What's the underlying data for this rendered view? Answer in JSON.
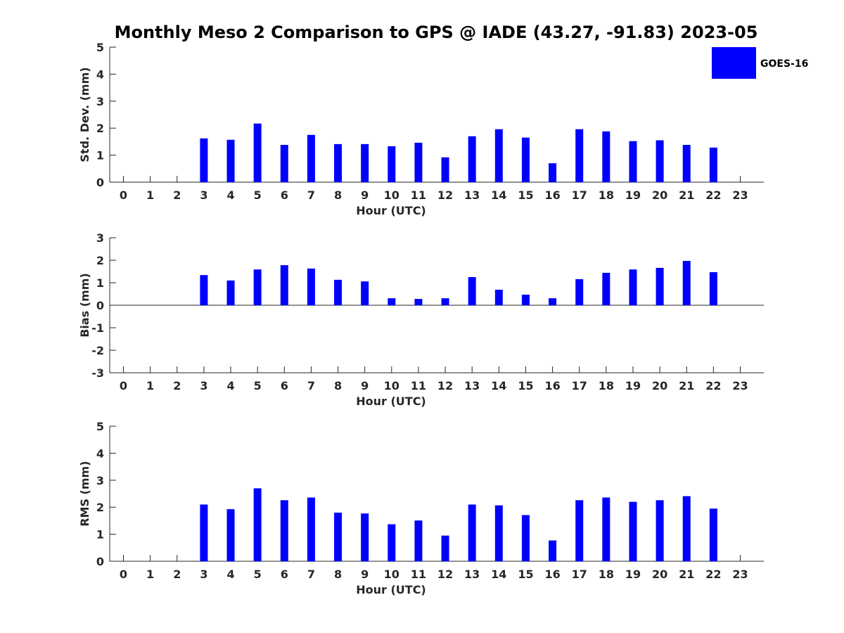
{
  "chart_data": {
    "title": "Monthly Meso 2 Comparison to GPS @ IADE (43.27, -91.83) 2023-05",
    "legend": {
      "label": "GOES-16",
      "color": "#0000ff",
      "placement": "top-right"
    },
    "panels": [
      {
        "type": "bar",
        "id": "std",
        "ylabel": "Std. Dev. (mm)",
        "xlabel": "Hour (UTC)",
        "ylim": [
          0,
          5
        ],
        "yticks": [
          0,
          1,
          2,
          3,
          4,
          5
        ],
        "categories": [
          "0",
          "1",
          "2",
          "3",
          "4",
          "5",
          "6",
          "7",
          "8",
          "9",
          "10",
          "11",
          "12",
          "13",
          "14",
          "15",
          "16",
          "17",
          "18",
          "19",
          "20",
          "21",
          "22",
          "23"
        ],
        "values": [
          null,
          null,
          null,
          1.62,
          1.57,
          2.17,
          1.38,
          1.75,
          1.41,
          1.41,
          1.33,
          1.46,
          0.92,
          1.7,
          1.96,
          1.65,
          0.7,
          1.96,
          1.88,
          1.52,
          1.55,
          1.38,
          1.28,
          null
        ]
      },
      {
        "type": "bar",
        "id": "bias",
        "ylabel": "Bias (mm)",
        "xlabel": "Hour (UTC)",
        "ylim": [
          -3,
          3
        ],
        "yticks": [
          -3,
          -2,
          -1,
          0,
          1,
          2,
          3
        ],
        "categories": [
          "0",
          "1",
          "2",
          "3",
          "4",
          "5",
          "6",
          "7",
          "8",
          "9",
          "10",
          "11",
          "12",
          "13",
          "14",
          "15",
          "16",
          "17",
          "18",
          "19",
          "20",
          "21",
          "22",
          "23"
        ],
        "values": [
          null,
          null,
          null,
          1.34,
          1.1,
          1.59,
          1.78,
          1.63,
          1.13,
          1.06,
          0.31,
          0.28,
          0.31,
          1.25,
          0.69,
          0.47,
          0.31,
          1.16,
          1.44,
          1.59,
          1.66,
          1.97,
          1.47,
          null
        ]
      },
      {
        "type": "bar",
        "id": "rms",
        "ylabel": "RMS (mm)",
        "xlabel": "Hour (UTC)",
        "ylim": [
          0,
          5
        ],
        "yticks": [
          0,
          1,
          2,
          3,
          4,
          5
        ],
        "categories": [
          "0",
          "1",
          "2",
          "3",
          "4",
          "5",
          "6",
          "7",
          "8",
          "9",
          "10",
          "11",
          "12",
          "13",
          "14",
          "15",
          "16",
          "17",
          "18",
          "19",
          "20",
          "21",
          "22",
          "23"
        ],
        "values": [
          null,
          null,
          null,
          2.1,
          1.93,
          2.7,
          2.26,
          2.36,
          1.8,
          1.77,
          1.37,
          1.51,
          0.95,
          2.1,
          2.07,
          1.71,
          0.77,
          2.26,
          2.36,
          2.2,
          2.26,
          2.41,
          1.95,
          null
        ]
      }
    ]
  }
}
